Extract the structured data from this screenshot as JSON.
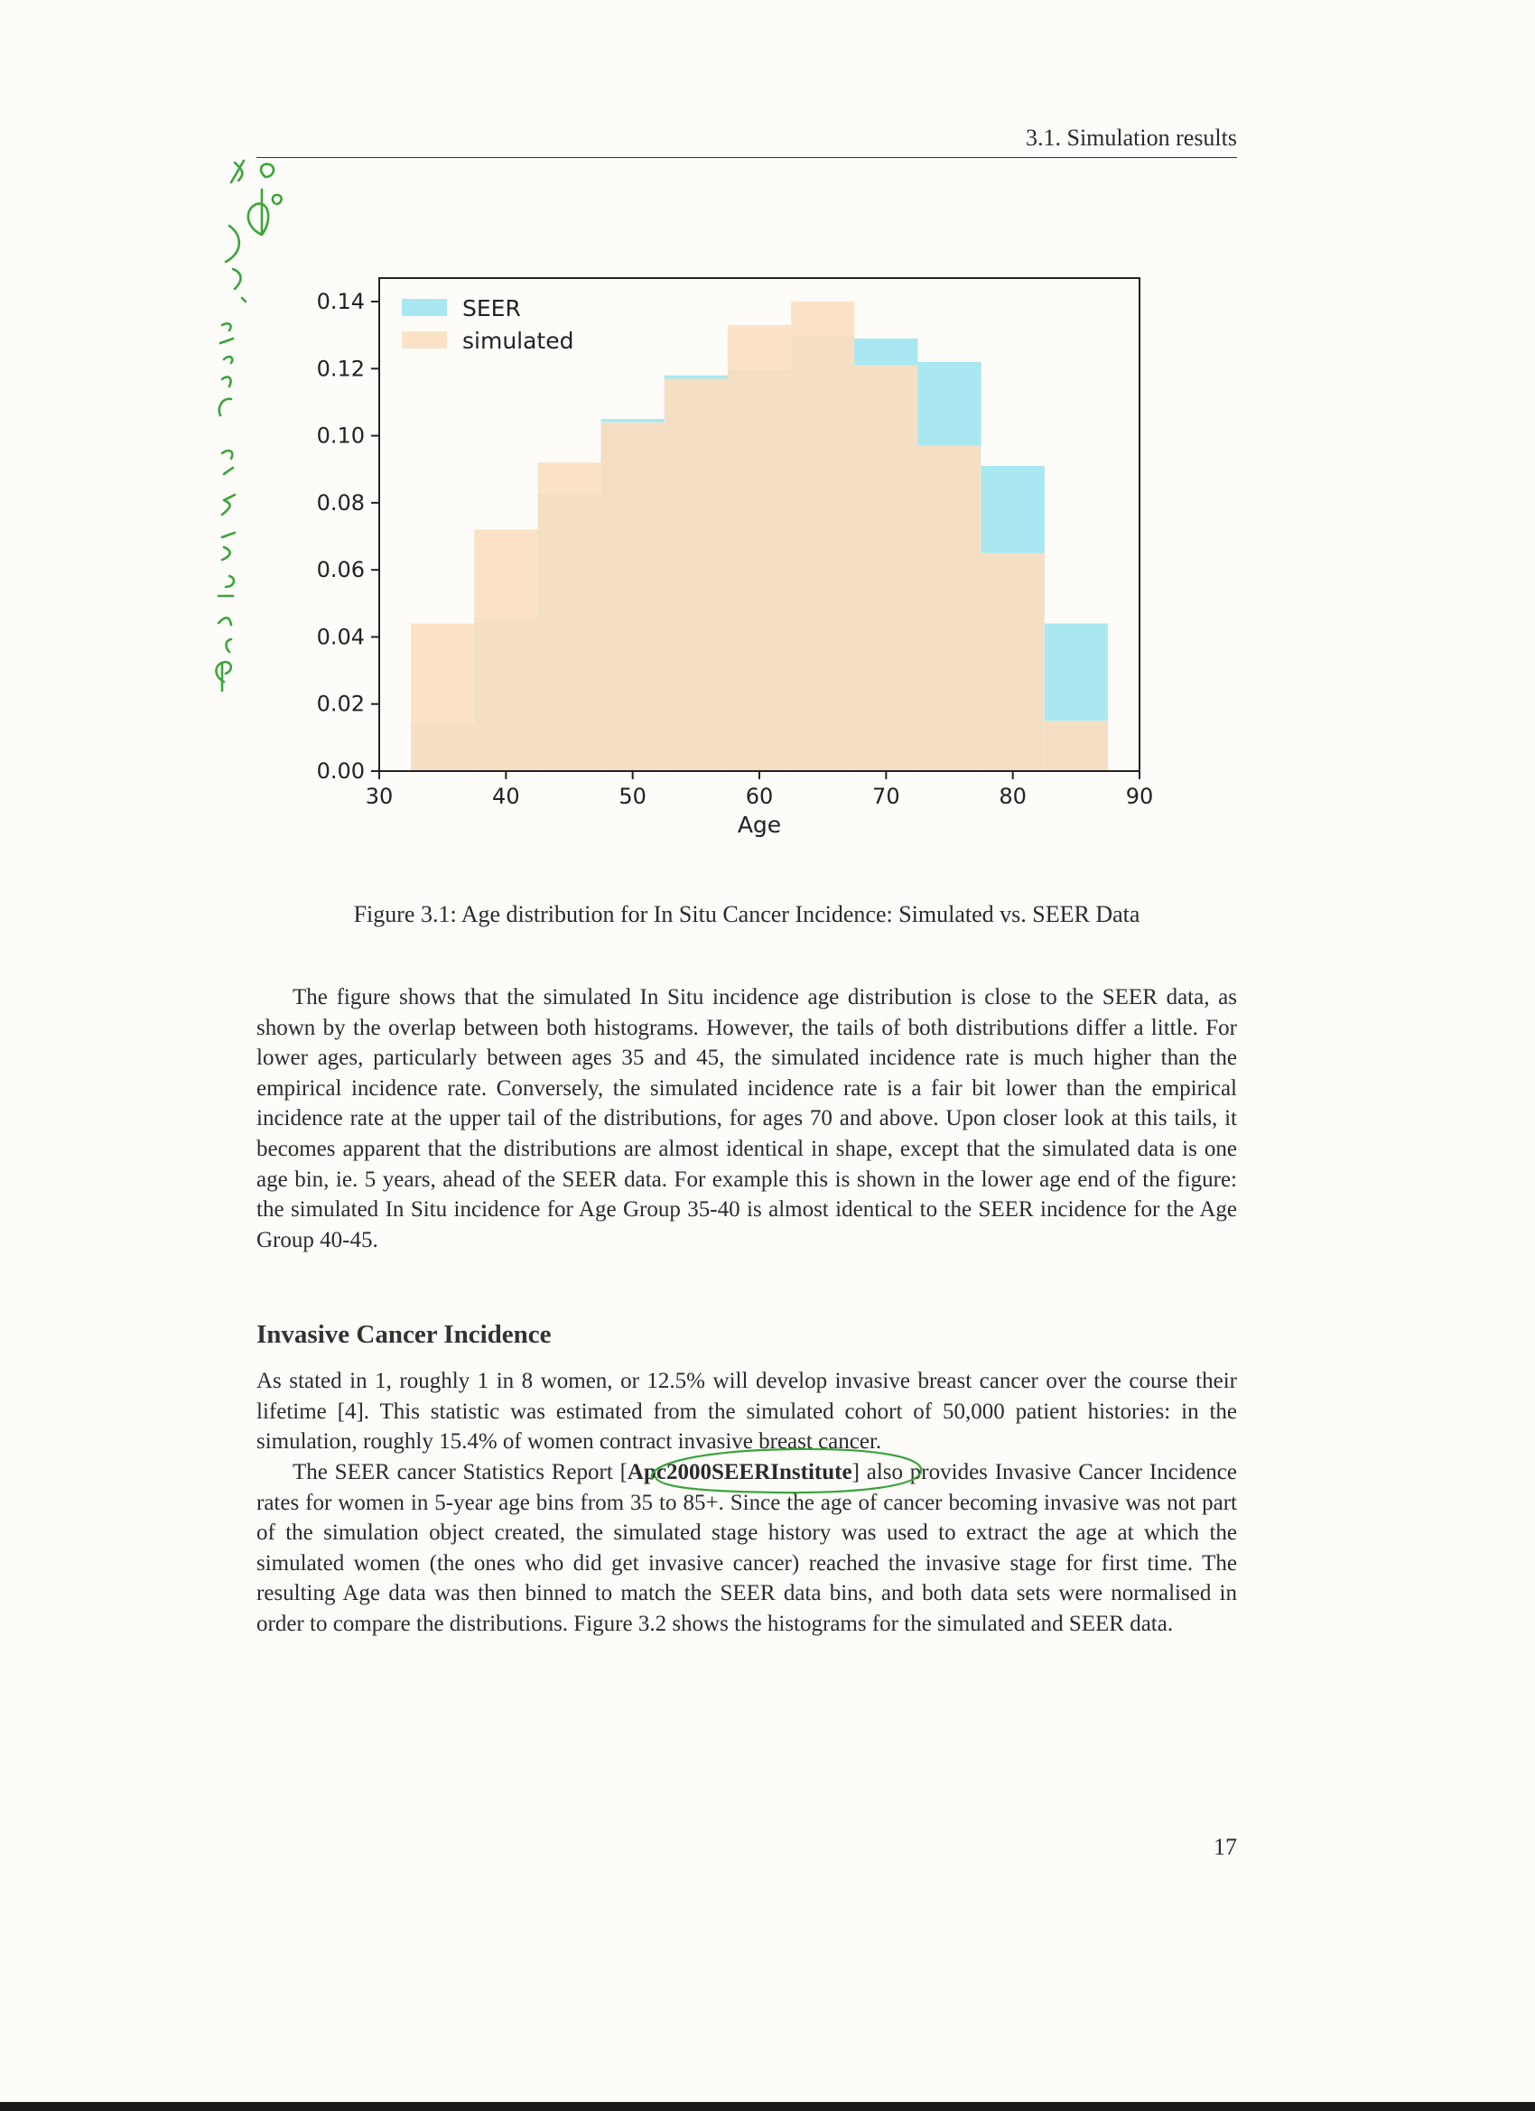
{
  "header": {
    "running_title": "3.1.  Simulation results"
  },
  "chart_data": {
    "type": "bar",
    "xlabel": "Age",
    "ylabel": "",
    "xlim": [
      30,
      90
    ],
    "ylim": [
      0,
      0.147
    ],
    "xticks": [
      30,
      40,
      50,
      60,
      70,
      80,
      90
    ],
    "yticks": [
      "0.00",
      "0.02",
      "0.04",
      "0.06",
      "0.08",
      "0.10",
      "0.12",
      "0.14"
    ],
    "bin_edges": [
      32.5,
      37.5,
      42.5,
      47.5,
      52.5,
      57.5,
      62.5,
      67.5,
      72.5,
      77.5,
      82.5,
      87.5
    ],
    "legend_position": "top-left",
    "grid": false,
    "series": [
      {
        "name": "SEER",
        "color": "#a9e8f0",
        "values": [
          0.014,
          0.046,
          0.083,
          0.105,
          0.118,
          0.12,
          0.13,
          0.129,
          0.122,
          0.091,
          0.044
        ]
      },
      {
        "name": "simulated",
        "color": "#fbe2c7",
        "values": [
          0.044,
          0.072,
          0.092,
          0.104,
          0.117,
          0.133,
          0.14,
          0.121,
          0.097,
          0.065,
          0.015
        ]
      }
    ]
  },
  "figure": {
    "caption": "Figure 3.1: Age distribution for In Situ Cancer Incidence: Simulated vs. SEER Data"
  },
  "body": {
    "para1": "The figure shows that the simulated In Situ incidence age distribution is close to the SEER data, as shown by the overlap between both histograms. However, the tails of both distributions differ a little. For lower ages, particularly between ages 35 and 45, the simulated incidence rate is much higher than the empirical incidence rate. Conversely, the simulated incidence rate is a fair bit lower than the empirical incidence rate at the upper tail of the distributions, for ages 70 and above. Upon closer look at this tails, it becomes apparent that the distributions are almost identical in shape, except that the simulated data is one age bin, ie. 5 years, ahead of the SEER data. For example this is shown in the lower age end of the figure: the simulated In Situ incidence for Age Group 35-40 is almost identical to the SEER incidence for the Age Group 40-45.",
    "section_heading": "Invasive Cancer Incidence",
    "para2": "As stated in 1, roughly 1 in 8 women, or 12.5% will develop invasive breast cancer over the course their lifetime [4]. This statistic was estimated from the simulated cohort of 50,000 patient histories: in the simulation, roughly 15.4% of women contract invasive breast cancer.",
    "para3_before": "The SEER cancer Statistics Report [",
    "para3_cite": "Apc2000SEERInstitute",
    "para3_after": "] also provides Invasive Cancer Incidence rates for women in 5-year age bins from 35 to 85+. Since the age of cancer becoming invasive was not part of the simulation object created, the simulated stage history was used to extract the age at which the simulated women (the ones who did get invasive cancer) reached the invasive stage for first time. The resulting Age data was then binned to match the SEER data bins, and both data sets were normalised in order to compare the distributions. Figure 3.2 shows the histograms for the simulated and SEER data."
  },
  "page_number": "17",
  "annotations": {
    "ink_color": "#3aa53a",
    "margin_note": "Pr( Invasive Cancer ? )  y-axis  ???",
    "ellipse_target": "Apc2000SEERInstitute"
  }
}
